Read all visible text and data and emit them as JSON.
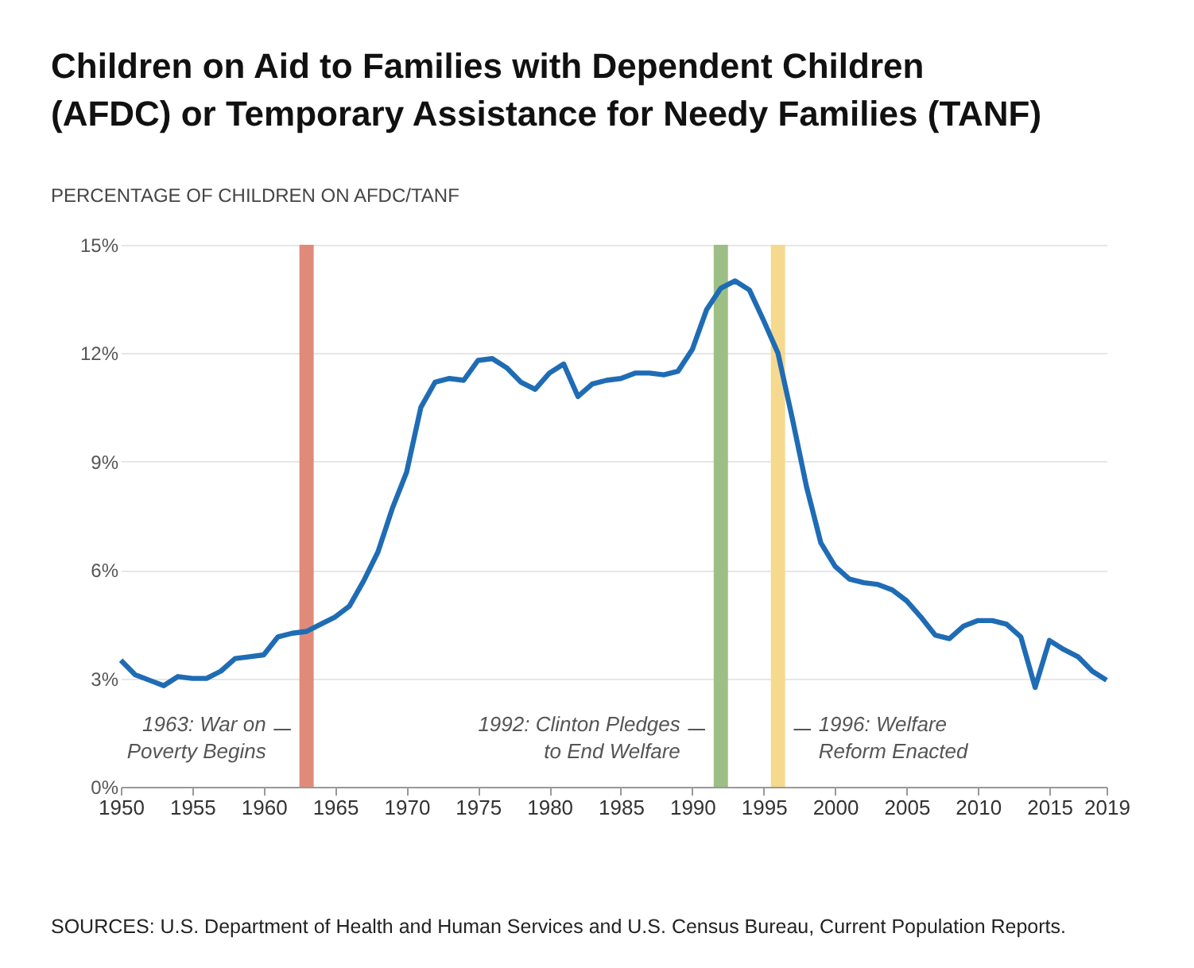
{
  "chart_data": {
    "type": "line",
    "title": "Children on Aid to Families with Dependent Children (AFDC) or Temporary Assistance for Needy Families (TANF)",
    "ylabel": "PERCENTAGE OF CHILDREN ON AFDC/TANF",
    "x": [
      1950,
      1951,
      1952,
      1953,
      1954,
      1955,
      1956,
      1957,
      1958,
      1959,
      1960,
      1961,
      1962,
      1963,
      1964,
      1965,
      1966,
      1967,
      1968,
      1969,
      1970,
      1971,
      1972,
      1973,
      1974,
      1975,
      1976,
      1977,
      1978,
      1979,
      1980,
      1981,
      1982,
      1983,
      1984,
      1985,
      1986,
      1987,
      1988,
      1989,
      1990,
      1991,
      1992,
      1993,
      1994,
      1995,
      1996,
      1997,
      1998,
      1999,
      2000,
      2001,
      2002,
      2003,
      2004,
      2005,
      2006,
      2007,
      2008,
      2009,
      2010,
      2011,
      2012,
      2013,
      2014,
      2015,
      2016,
      2017,
      2018,
      2019
    ],
    "series": [
      {
        "color": "#1f6cb5",
        "values": [
          3.5,
          3.1,
          2.95,
          2.8,
          3.05,
          3.0,
          3.0,
          3.2,
          3.55,
          3.6,
          3.65,
          4.15,
          4.25,
          4.3,
          4.5,
          4.7,
          5.0,
          5.7,
          6.5,
          7.7,
          8.7,
          10.5,
          11.2,
          11.3,
          11.25,
          11.8,
          11.85,
          11.6,
          11.2,
          11.0,
          11.45,
          11.7,
          10.8,
          11.15,
          11.25,
          11.3,
          11.45,
          11.45,
          11.4,
          11.5,
          12.1,
          13.2,
          13.8,
          14.0,
          13.75,
          12.9,
          12.0,
          10.2,
          8.3,
          6.75,
          6.1,
          5.75,
          5.65,
          5.6,
          5.45,
          5.15,
          4.7,
          4.2,
          4.1,
          4.45,
          4.6,
          4.6,
          4.5,
          4.15,
          2.75,
          4.05,
          3.8,
          3.6,
          3.2,
          2.95
        ]
      }
    ],
    "xlim": [
      1950,
      2019
    ],
    "xticks": [
      1950,
      1955,
      1960,
      1965,
      1970,
      1975,
      1980,
      1985,
      1990,
      1995,
      2000,
      2005,
      2010,
      2015,
      2019
    ],
    "ylim": [
      0,
      15
    ],
    "yticks": [
      {
        "value": 0,
        "label": "0%"
      },
      {
        "value": 3,
        "label": "3%"
      },
      {
        "value": 6,
        "label": "6%"
      },
      {
        "value": 9,
        "label": "9%"
      },
      {
        "value": 12,
        "label": "12%"
      },
      {
        "value": 15,
        "label": "15%"
      }
    ],
    "bands": [
      {
        "axis": "x",
        "from": 1962.5,
        "to": 1963.5,
        "label": "1963: War on\nPoverty Begins",
        "color": "#e08a7a"
      },
      {
        "axis": "x",
        "from": 1991.5,
        "to": 1992.5,
        "label": "1992: Clinton Pledges\nto End Welfare",
        "color": "#9dbf85"
      },
      {
        "axis": "x",
        "from": 1995.5,
        "to": 1996.5,
        "label": "1996: Welfare\nReform Enacted",
        "color": "#f5d98e"
      }
    ],
    "grid": "y",
    "line_style": "solid",
    "marker": "none",
    "annotations": [
      "SOURCES: U.S. Department of Health and Human Services and U.S. Census Bureau, Current Population Reports."
    ]
  }
}
